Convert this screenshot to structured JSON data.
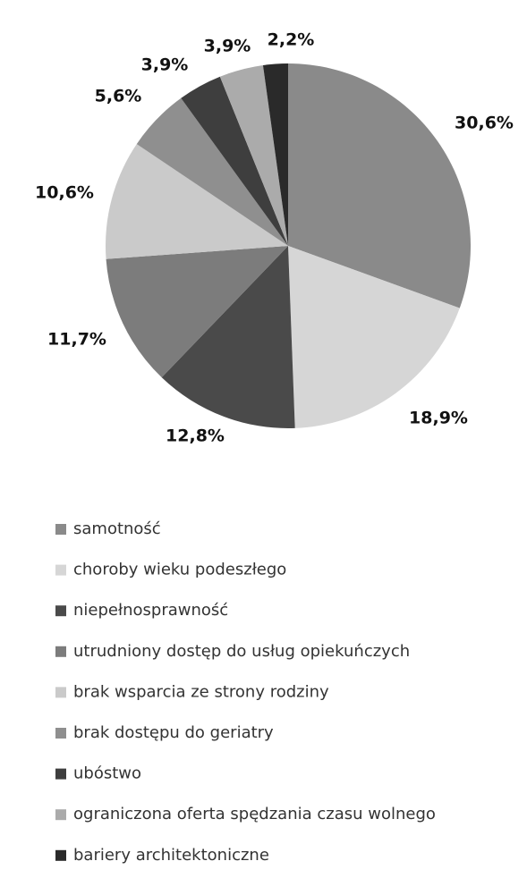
{
  "chart_data": {
    "type": "pie",
    "categories": [
      "samotność",
      "choroby wieku podeszłego",
      "niepełnosprawność",
      "utrudniony dostęp do usług opiekuńczych",
      "brak wsparcia ze strony rodziny",
      "brak dostępu do geriatry",
      "ubóstwo",
      "ograniczona oferta spędzania czasu wolnego",
      "bariery architektoniczne"
    ],
    "values": [
      30.6,
      18.9,
      12.8,
      11.7,
      10.6,
      5.6,
      3.9,
      3.9,
      2.2
    ],
    "value_labels": [
      "30,6%",
      "18,9%",
      "12,8%",
      "11,7%",
      "10,6%",
      "5,6%",
      "3,9%",
      "3,9%",
      "2,2%"
    ],
    "colors": [
      "#8a8a8a",
      "#d6d6d6",
      "#4a4a4a",
      "#7c7c7c",
      "#cacaca",
      "#8f8f8f",
      "#3e3e3e",
      "#ababab",
      "#2a2a2a"
    ],
    "legend": "bottom"
  }
}
